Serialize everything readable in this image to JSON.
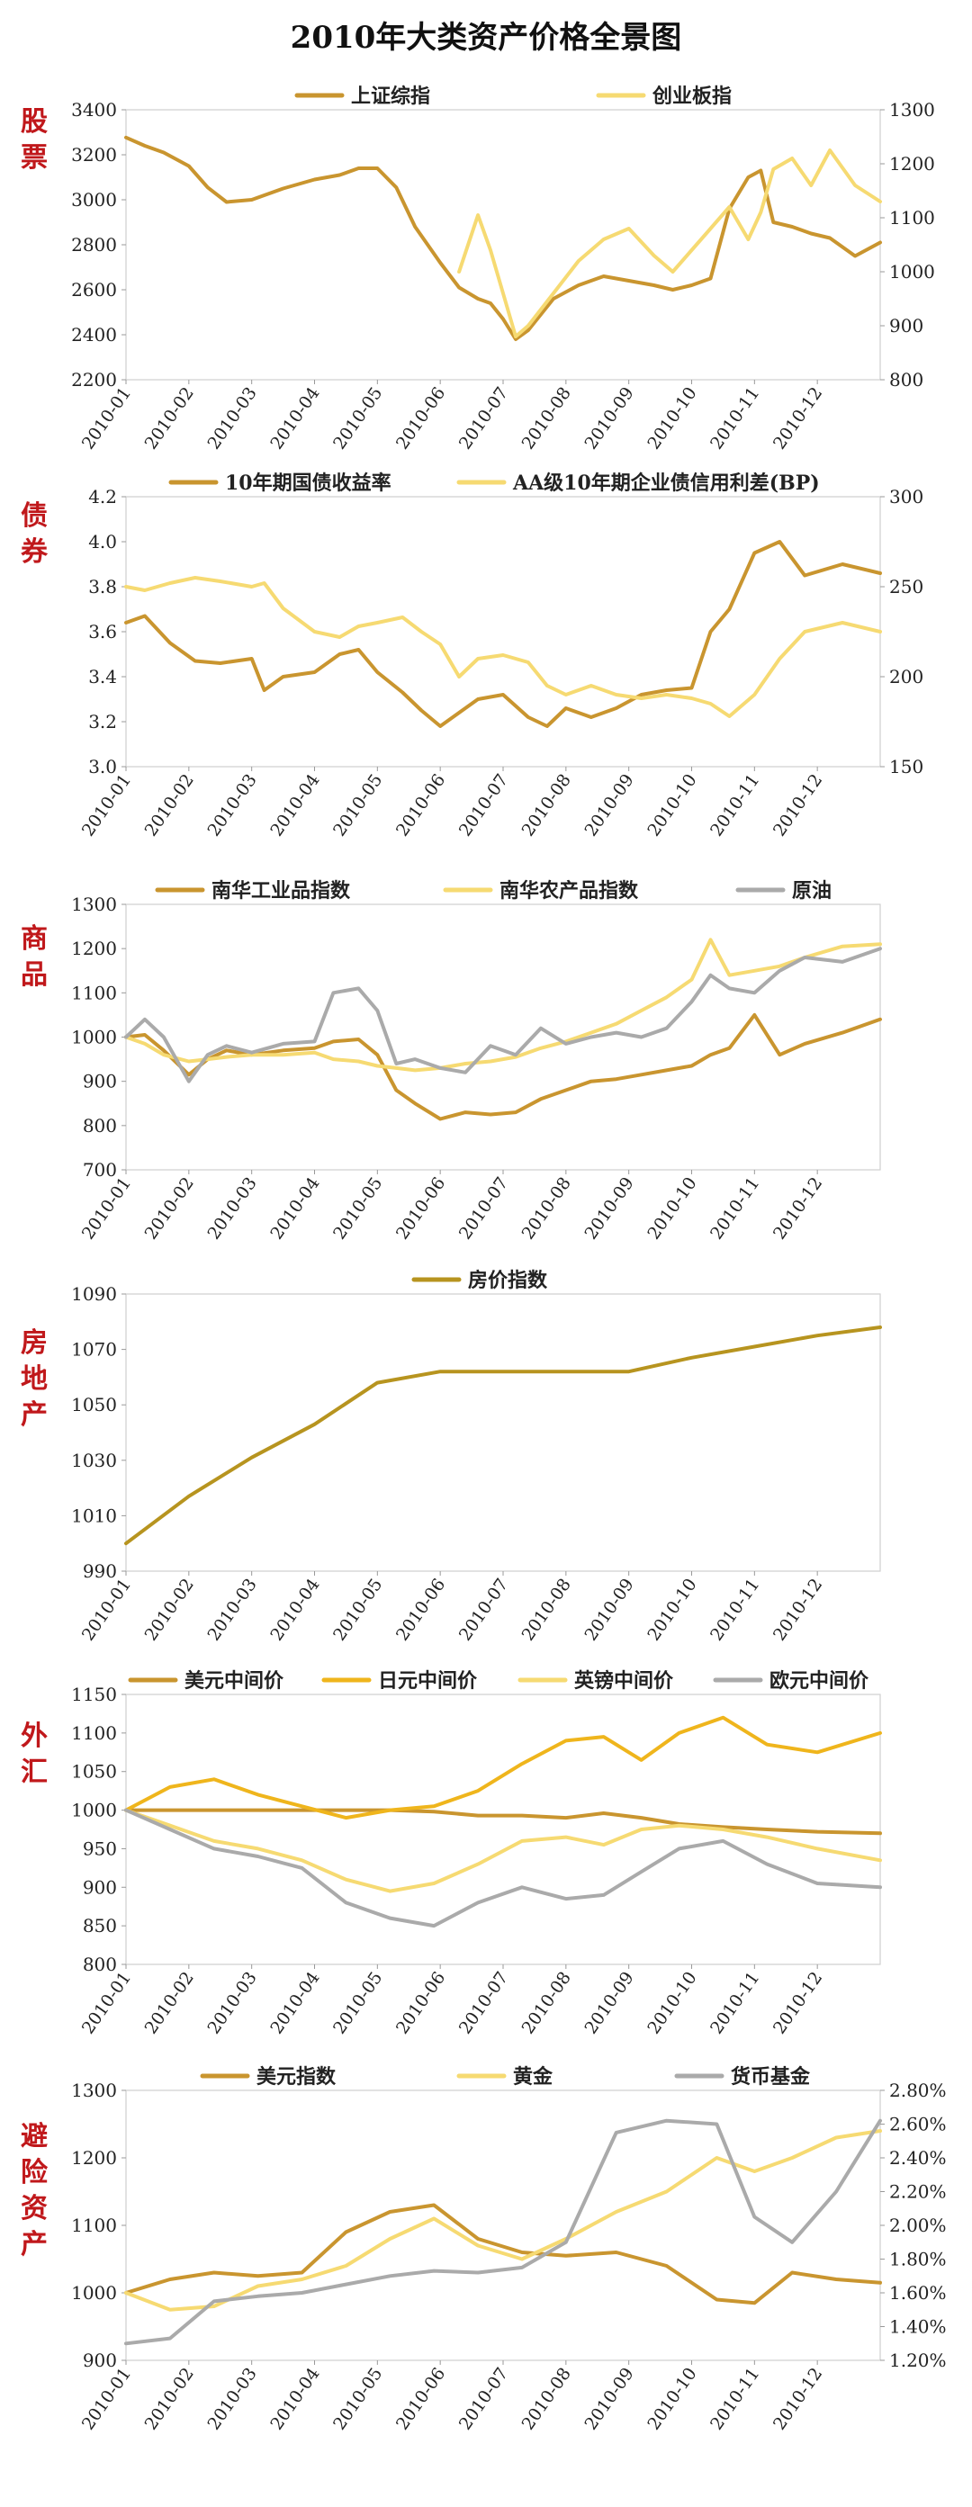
{
  "page": {
    "title": "2010年大类资产价格全景图"
  },
  "months": [
    "2010-01",
    "2010-02",
    "2010-03",
    "2010-04",
    "2010-05",
    "2010-06",
    "2010-07",
    "2010-08",
    "2010-09",
    "2010-10",
    "2010-11",
    "2010-12"
  ],
  "colors": {
    "dark_gold": "#c9952f",
    "light_yellow": "#f6da72",
    "gray": "#aaaaaa",
    "orange_gold": "#efb51c",
    "label_red": "#c0181b"
  },
  "chart_data": [
    {
      "id": "stocks",
      "type": "line",
      "side_label": "股票",
      "y_left": {
        "min": 2200,
        "max": 3400,
        "ticks": [
          2200,
          2400,
          2600,
          2800,
          3000,
          3200,
          3400
        ]
      },
      "y_right": {
        "min": 800,
        "max": 1300,
        "ticks": [
          800,
          900,
          1000,
          1100,
          1200,
          1300
        ]
      },
      "series": [
        {
          "name": "上证综指",
          "color": "#c9952f",
          "axis": "left",
          "values": [
            3277,
            3240,
            3210,
            3150,
            3055,
            2990,
            3000,
            3050,
            3090,
            3110,
            3140,
            3140,
            3055,
            2880,
            2720,
            2610,
            2560,
            2540,
            2470,
            2380,
            2420,
            2560,
            2620,
            2660,
            2640,
            2620,
            2600,
            2620,
            2650,
            2960,
            3100,
            3130,
            2900,
            2880,
            2850,
            2830,
            2750,
            2810
          ]
        },
        {
          "name": "创业板指",
          "color": "#f6da72",
          "axis": "right",
          "values": [
            null,
            null,
            null,
            null,
            null,
            null,
            null,
            null,
            null,
            null,
            null,
            null,
            null,
            null,
            null,
            1000,
            1105,
            1040,
            960,
            880,
            900,
            960,
            1020,
            1060,
            1080,
            1030,
            1000,
            1040,
            1080,
            1120,
            1060,
            1110,
            1190,
            1210,
            1160,
            1225,
            1160,
            1130
          ]
        }
      ],
      "x_dates": [
        0,
        0.3,
        0.6,
        1,
        1.3,
        1.6,
        2,
        2.5,
        3,
        3.4,
        3.7,
        4,
        4.3,
        4.6,
        5,
        5.3,
        5.6,
        5.8,
        6,
        6.2,
        6.4,
        6.8,
        7.2,
        7.6,
        8,
        8.4,
        8.7,
        9,
        9.3,
        9.6,
        9.9,
        10.1,
        10.3,
        10.6,
        10.9,
        11.2,
        11.6,
        12
      ]
    },
    {
      "id": "bonds",
      "type": "line",
      "side_label": "债券",
      "y_left": {
        "min": 3.0,
        "max": 4.2,
        "ticks": [
          3.0,
          3.2,
          3.4,
          3.6,
          3.8,
          4.0,
          4.2
        ]
      },
      "y_right": {
        "min": 150,
        "max": 300,
        "ticks": [
          150,
          200,
          250,
          300
        ]
      },
      "series": [
        {
          "name": "10年期国债收益率",
          "color": "#c9952f",
          "axis": "left",
          "values": [
            3.64,
            3.67,
            3.55,
            3.47,
            3.46,
            3.48,
            3.34,
            3.4,
            3.42,
            3.5,
            3.52,
            3.42,
            3.33,
            3.25,
            3.18,
            3.24,
            3.3,
            3.32,
            3.22,
            3.18,
            3.26,
            3.22,
            3.26,
            3.32,
            3.34,
            3.35,
            3.6,
            3.7,
            3.95,
            4.0,
            3.85,
            3.9,
            3.86
          ]
        },
        {
          "name": "AA级10年期企业债信用利差(BP)",
          "color": "#f6da72",
          "axis": "right",
          "values": [
            250,
            248,
            252,
            255,
            253,
            250,
            252,
            238,
            225,
            222,
            228,
            230,
            233,
            225,
            218,
            200,
            210,
            212,
            208,
            195,
            190,
            195,
            190,
            188,
            190,
            188,
            185,
            178,
            190,
            210,
            225,
            230,
            225
          ]
        }
      ],
      "x_dates": [
        0,
        0.3,
        0.7,
        1.1,
        1.5,
        2,
        2.2,
        2.5,
        3,
        3.4,
        3.7,
        4,
        4.4,
        4.7,
        5,
        5.3,
        5.6,
        6,
        6.4,
        6.7,
        7,
        7.4,
        7.8,
        8.2,
        8.6,
        9,
        9.3,
        9.6,
        10,
        10.4,
        10.8,
        11.4,
        12
      ]
    },
    {
      "id": "commodities",
      "type": "line",
      "side_label": "商品",
      "y_left": {
        "min": 700,
        "max": 1300,
        "ticks": [
          700,
          800,
          900,
          1000,
          1100,
          1200,
          1300
        ]
      },
      "series": [
        {
          "name": "南华工业品指数",
          "color": "#c9952f",
          "axis": "left",
          "values": [
            1000,
            1005,
            970,
            915,
            950,
            970,
            960,
            970,
            975,
            990,
            995,
            960,
            880,
            850,
            815,
            830,
            825,
            830,
            860,
            880,
            900,
            905,
            915,
            925,
            935,
            960,
            975,
            1050,
            960,
            985,
            1010,
            1040
          ]
        },
        {
          "name": "南华农产品指数",
          "color": "#f6da72",
          "axis": "left",
          "values": [
            1000,
            985,
            960,
            945,
            950,
            955,
            960,
            960,
            965,
            950,
            945,
            935,
            930,
            925,
            930,
            940,
            945,
            955,
            975,
            990,
            1010,
            1030,
            1060,
            1090,
            1130,
            1220,
            1140,
            1150,
            1160,
            1180,
            1205,
            1210
          ]
        },
        {
          "name": "原油",
          "color": "#aaaaaa",
          "axis": "left",
          "values": [
            1000,
            1040,
            1000,
            900,
            960,
            980,
            965,
            985,
            990,
            1100,
            1110,
            1060,
            940,
            950,
            930,
            920,
            980,
            960,
            1020,
            985,
            1000,
            1010,
            1000,
            1020,
            1080,
            1140,
            1110,
            1100,
            1150,
            1180,
            1170,
            1200
          ]
        }
      ],
      "x_dates": [
        0,
        0.3,
        0.6,
        1,
        1.3,
        1.6,
        2,
        2.5,
        3,
        3.3,
        3.7,
        4,
        4.3,
        4.6,
        5,
        5.4,
        5.8,
        6.2,
        6.6,
        7,
        7.4,
        7.8,
        8.2,
        8.6,
        9,
        9.3,
        9.6,
        10,
        10.4,
        10.8,
        11.4,
        12
      ]
    },
    {
      "id": "real_estate",
      "type": "line",
      "side_label": "房地产",
      "y_left": {
        "min": 990,
        "max": 1090,
        "ticks": [
          990,
          1010,
          1030,
          1050,
          1070,
          1090
        ]
      },
      "series": [
        {
          "name": "房价指数",
          "color": "#b7941f",
          "axis": "left",
          "values": [
            1000,
            1017,
            1031,
            1043,
            1058,
            1062,
            1062,
            1062,
            1062,
            1067,
            1071,
            1075,
            1078
          ]
        }
      ],
      "x_dates": [
        0,
        1,
        2,
        3,
        4,
        5,
        6,
        7,
        8,
        9,
        10,
        11,
        12
      ]
    },
    {
      "id": "fx",
      "type": "line",
      "side_label": "外汇",
      "y_left": {
        "min": 800,
        "max": 1150,
        "ticks": [
          800,
          850,
          900,
          950,
          1000,
          1050,
          1100,
          1150
        ]
      },
      "series": [
        {
          "name": "美元中间价",
          "color": "#c9952f",
          "axis": "left",
          "values": [
            1000,
            1000,
            1000,
            1000,
            1000,
            1000,
            1000,
            998,
            993,
            993,
            990,
            996,
            990,
            982,
            978,
            975,
            972,
            970
          ]
        },
        {
          "name": "日元中间价",
          "color": "#efb51c",
          "axis": "left",
          "values": [
            1000,
            1030,
            1040,
            1020,
            1005,
            990,
            1000,
            1005,
            1025,
            1060,
            1090,
            1095,
            1065,
            1100,
            1120,
            1085,
            1075,
            1100
          ]
        },
        {
          "name": "英镑中间价",
          "color": "#f6da72",
          "axis": "left",
          "values": [
            1000,
            980,
            960,
            950,
            935,
            910,
            895,
            905,
            930,
            960,
            965,
            955,
            975,
            980,
            975,
            965,
            950,
            935
          ]
        },
        {
          "name": "欧元中间价",
          "color": "#aaaaaa",
          "axis": "left",
          "values": [
            1000,
            975,
            950,
            940,
            925,
            880,
            860,
            850,
            880,
            900,
            885,
            890,
            920,
            950,
            960,
            930,
            905,
            900
          ]
        }
      ],
      "x_dates": [
        0,
        0.7,
        1.4,
        2.1,
        2.8,
        3.5,
        4.2,
        4.9,
        5.6,
        6.3,
        7.0,
        7.6,
        8.2,
        8.8,
        9.5,
        10.2,
        11.0,
        12
      ]
    },
    {
      "id": "safe_haven",
      "type": "line",
      "side_label": "避险资产",
      "y_left": {
        "min": 900,
        "max": 1300,
        "ticks": [
          900,
          1000,
          1100,
          1200,
          1300
        ]
      },
      "y_right": {
        "min": 1.2,
        "max": 2.8,
        "ticks": [
          1.2,
          1.4,
          1.6,
          1.8,
          2.0,
          2.2,
          2.4,
          2.6,
          2.8
        ],
        "format": "percent"
      },
      "series": [
        {
          "name": "美元指数",
          "color": "#c9952f",
          "axis": "left",
          "values": [
            1000,
            1020,
            1030,
            1025,
            1030,
            1090,
            1120,
            1130,
            1080,
            1060,
            1055,
            1060,
            1040,
            990,
            985,
            1030,
            1020,
            1015
          ]
        },
        {
          "name": "黄金",
          "color": "#f6da72",
          "axis": "left",
          "values": [
            1000,
            975,
            980,
            1010,
            1020,
            1040,
            1080,
            1110,
            1070,
            1050,
            1080,
            1120,
            1150,
            1200,
            1180,
            1200,
            1230,
            1240
          ]
        },
        {
          "name": "货币基金",
          "color": "#aaaaaa",
          "axis": "right",
          "values": [
            1.3,
            1.33,
            1.55,
            1.58,
            1.6,
            1.65,
            1.7,
            1.73,
            1.72,
            1.75,
            1.9,
            2.55,
            2.62,
            2.6,
            2.05,
            1.9,
            2.2,
            2.62
          ]
        }
      ],
      "x_dates": [
        0,
        0.7,
        1.4,
        2.1,
        2.8,
        3.5,
        4.2,
        4.9,
        5.6,
        6.3,
        7.0,
        7.8,
        8.6,
        9.4,
        10.0,
        10.6,
        11.3,
        12
      ]
    }
  ]
}
